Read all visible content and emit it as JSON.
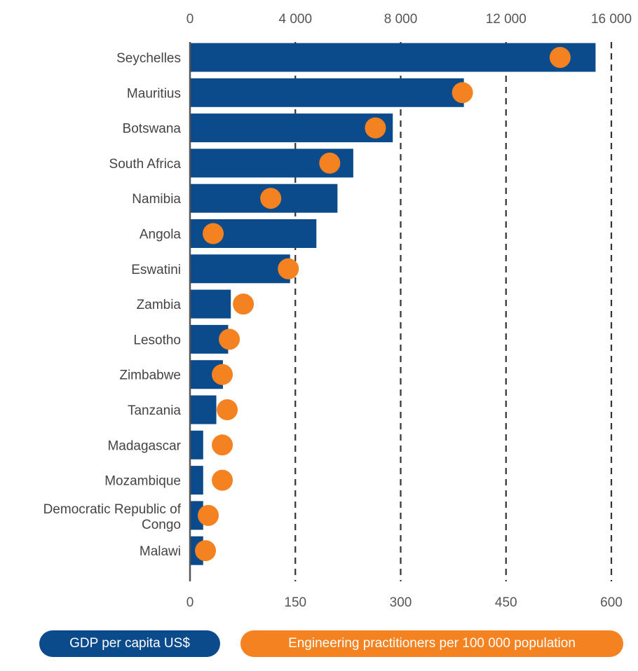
{
  "colors": {
    "gdp": "#0b4a8b",
    "engineers": "#f58220",
    "grid": "#333333",
    "axis": "#555555"
  },
  "chart_data": {
    "type": "bar",
    "orientation": "horizontal",
    "grid": true,
    "gridlines": "dashed vertical",
    "legend_position": "bottom",
    "categories": [
      "Seychelles",
      "Mauritius",
      "Botswana",
      "South Africa",
      "Namibia",
      "Angola",
      "Eswatini",
      "Zambia",
      "Lesotho",
      "Zimbabwe",
      "Tanzania",
      "Madagascar",
      "Mozambique",
      "Democratic Republic of Congo",
      "Malawi"
    ],
    "top_axis": {
      "ticks": [
        "0",
        "4 000",
        "8 000",
        "12 000",
        "16 000"
      ],
      "range": [
        0,
        16000
      ]
    },
    "bottom_axis": {
      "ticks": [
        "0",
        "150",
        "300",
        "450",
        "600"
      ],
      "range": [
        0,
        600
      ]
    },
    "series": [
      {
        "name": "GDP per capita US$",
        "axis": "top",
        "mark": "bar",
        "values": [
          15400,
          10400,
          7700,
          6200,
          5600,
          4800,
          3800,
          1550,
          1450,
          1250,
          1000,
          500,
          500,
          500,
          500
        ]
      },
      {
        "name": "Engineering practitioners per 100 000 population",
        "axis": "bottom",
        "mark": "dot",
        "values": [
          527,
          388,
          264,
          199,
          115,
          33,
          140,
          76,
          56,
          46,
          53,
          46,
          46,
          26,
          22
        ]
      }
    ]
  }
}
